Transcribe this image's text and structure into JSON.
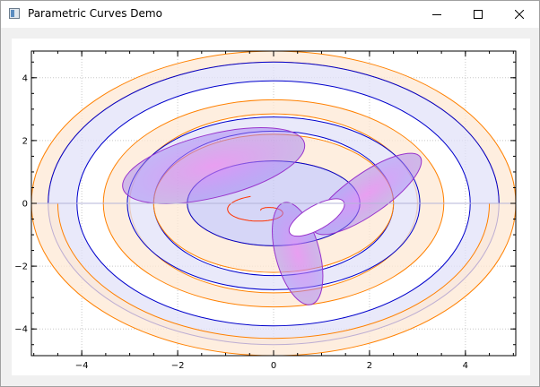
{
  "window": {
    "title": "Parametric Curves Demo",
    "icon": "app-window-icon",
    "controls": [
      "minimize-icon",
      "maximize-icon",
      "close-icon"
    ]
  },
  "chart_data": {
    "type": "line",
    "title": "",
    "xlabel": "",
    "ylabel": "",
    "xlim": [
      -5.05,
      5.05
    ],
    "ylim": [
      -4.85,
      4.85
    ],
    "xticks": [
      -4,
      -2,
      0,
      2,
      4
    ],
    "yticks": [
      -4,
      -2,
      0,
      2,
      4
    ],
    "xtick_labels": [
      "−4",
      "−2",
      "0",
      "2",
      "4"
    ],
    "ytick_labels": [
      "−4",
      "−2",
      "0",
      "2",
      "4"
    ],
    "grid": true,
    "legend": "none",
    "series": [
      {
        "kind": "ellipse-band",
        "cx": 0,
        "cy": 0,
        "rx_outer": 5.05,
        "ry_outer": 4.85,
        "rx_inner": 4.7,
        "ry_inner": 4.5,
        "half": "upper",
        "stroke": "#ff8000",
        "fill": "#fde8d4"
      },
      {
        "kind": "ellipse-band",
        "cx": 0,
        "cy": 0,
        "rx_outer": 4.7,
        "ry_outer": 4.5,
        "rx_inner": 4.1,
        "ry_inner": 3.9,
        "half": "lower",
        "stroke": "#0000cc",
        "fill": "#e2e2f8"
      },
      {
        "kind": "ellipse-band",
        "cx": 0,
        "cy": 0,
        "rx_outer": 4.7,
        "ry_outer": 4.5,
        "rx_inner": 4.1,
        "ry_inner": 3.9,
        "half": "upper",
        "stroke": "#0000cc",
        "fill": "#e2e2f8"
      },
      {
        "kind": "ellipse-band",
        "cx": 0,
        "cy": 0,
        "rx_outer": 5.05,
        "ry_outer": 4.85,
        "rx_inner": 4.5,
        "ry_inner": 4.3,
        "half": "lower",
        "stroke": "#ff8000",
        "fill": "#fde8d4"
      },
      {
        "kind": "ellipse-band",
        "cx": 0,
        "cy": 0,
        "rx_outer": 3.55,
        "ry_outer": 3.3,
        "rx_inner": 3.0,
        "ry_inner": 2.85,
        "half": "upper",
        "stroke": "#ff8000",
        "fill": "#fde8d4"
      },
      {
        "kind": "ellipse-band",
        "cx": 0,
        "cy": 0,
        "rx_outer": 3.55,
        "ry_outer": 3.3,
        "rx_inner": 3.0,
        "ry_inner": 2.85,
        "half": "lower",
        "stroke": "#ff8000",
        "fill": "#fde8d4"
      },
      {
        "kind": "ellipse-band",
        "cx": 0,
        "cy": 0,
        "rx_outer": 3.05,
        "ry_outer": 2.75,
        "rx_inner": 2.5,
        "ry_inner": 2.3,
        "half": "lower",
        "stroke": "#0000cc",
        "fill": "#e2e2f8"
      },
      {
        "kind": "ellipse-band",
        "cx": 0,
        "cy": 0,
        "rx_outer": 3.05,
        "ry_outer": 2.75,
        "rx_inner": 2.5,
        "ry_inner": 2.3,
        "half": "upper",
        "stroke": "#0000cc",
        "fill": "#e2e2f8"
      },
      {
        "kind": "ellipse-band",
        "cx": 0,
        "cy": 0,
        "rx_outer": 2.5,
        "ry_outer": 2.2,
        "rx_inner": 1.8,
        "ry_inner": 1.35,
        "half": "upper",
        "stroke": "#ff8000",
        "fill": "#fde8d4"
      },
      {
        "kind": "ellipse-band",
        "cx": 0,
        "cy": 0,
        "rx_outer": 2.5,
        "ry_outer": 2.2,
        "rx_inner": 1.8,
        "ry_inner": 1.35,
        "half": "lower",
        "stroke": "#ff8000",
        "fill": "#fde8d4"
      },
      {
        "kind": "ellipse-band",
        "cx": 0,
        "cy": 0,
        "rx_outer": 1.8,
        "ry_outer": 1.35,
        "rx_inner": 0.6,
        "ry_inner": 0.0,
        "half": "upper",
        "stroke": "#0000cc",
        "fill": "#c8c8f4"
      },
      {
        "kind": "ellipse-band",
        "cx": 0,
        "cy": 0,
        "rx_outer": 1.8,
        "ry_outer": 1.35,
        "rx_inner": 0.6,
        "ry_inner": 0.0,
        "half": "lower",
        "stroke": "#0000cc",
        "fill": "#c8c8f4"
      },
      {
        "kind": "spiral",
        "stroke": "#ff3300"
      },
      {
        "kind": "petal",
        "cx": -1.25,
        "cy": 1.2,
        "rx": 1.95,
        "ry": 1.0,
        "rotate_deg": -14,
        "stroke": "#9933cc",
        "fill": "#c8a0f8"
      },
      {
        "kind": "petal",
        "cx": 1.95,
        "cy": 0.3,
        "rx": 1.35,
        "ry": 0.65,
        "rotate_deg": -35,
        "stroke": "#9933cc",
        "fill": "#c8a0f8"
      },
      {
        "kind": "petal",
        "cx": 0.5,
        "cy": -1.6,
        "rx": 1.1,
        "ry": 0.7,
        "rotate_deg": 75,
        "stroke": "#9933cc",
        "fill": "#c8a0f8"
      }
    ]
  }
}
